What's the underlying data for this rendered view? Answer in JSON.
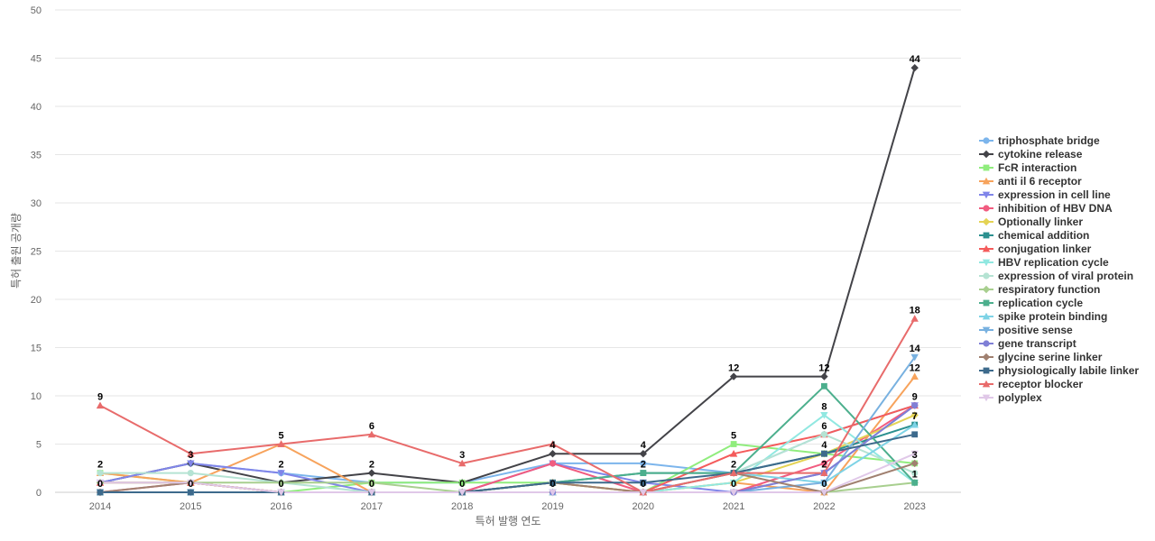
{
  "chart_data": {
    "type": "line",
    "title": "",
    "xlabel": "특허 발행 연도",
    "ylabel": "특허 출원 공개량",
    "ylim": [
      0,
      50
    ],
    "yticks": [
      0,
      5,
      10,
      15,
      20,
      25,
      30,
      35,
      40,
      45,
      50
    ],
    "grid": true,
    "legend_position": "right",
    "x": [
      "2014",
      "2015",
      "2016",
      "2017",
      "2018",
      "2019",
      "2020",
      "2021",
      "2022",
      "2023"
    ],
    "series": [
      {
        "name": "triphosphate bridge",
        "color": "#7cb5ec",
        "marker": "circle",
        "values": [
          1,
          3,
          2,
          1,
          1,
          3,
          3,
          2,
          6,
          9
        ]
      },
      {
        "name": "cytokine release",
        "color": "#434348",
        "marker": "diamond",
        "values": [
          1,
          3,
          1,
          2,
          1,
          4,
          4,
          12,
          12,
          44
        ]
      },
      {
        "name": "FcR interaction",
        "color": "#90ed7d",
        "marker": "square",
        "values": [
          2,
          1,
          0,
          1,
          1,
          1,
          0,
          5,
          4,
          3
        ]
      },
      {
        "name": "anti il 6 receptor",
        "color": "#f7a35c",
        "marker": "triangle",
        "values": [
          2,
          1,
          5,
          0,
          0,
          1,
          0,
          1,
          0,
          12
        ]
      },
      {
        "name": "expression in cell line",
        "color": "#8085e9",
        "marker": "triangle-down",
        "values": [
          1,
          3,
          2,
          0,
          0,
          3,
          1,
          0,
          2,
          9
        ]
      },
      {
        "name": "inhibition of HBV DNA",
        "color": "#f15c80",
        "marker": "circle",
        "values": [
          0,
          1,
          0,
          0,
          0,
          3,
          0,
          0,
          3,
          9
        ]
      },
      {
        "name": "Optionally linker",
        "color": "#e4d354",
        "marker": "diamond",
        "values": [
          1,
          1,
          0,
          0,
          0,
          1,
          0,
          1,
          4,
          8
        ]
      },
      {
        "name": "chemical addition",
        "color": "#2b908f",
        "marker": "square",
        "values": [
          0,
          0,
          0,
          0,
          0,
          1,
          2,
          2,
          4,
          7
        ]
      },
      {
        "name": "conjugation linker",
        "color": "#f45b5b",
        "marker": "triangle",
        "values": [
          1,
          1,
          0,
          0,
          0,
          0,
          0,
          4,
          6,
          9
        ]
      },
      {
        "name": "HBV replication cycle",
        "color": "#91e8e1",
        "marker": "triangle-down",
        "values": [
          0,
          0,
          0,
          0,
          0,
          0,
          0,
          1,
          8,
          1
        ]
      },
      {
        "name": "expression of viral protein",
        "color": "#b5e3d3",
        "marker": "circle",
        "values": [
          2,
          2,
          1,
          0,
          0,
          0,
          0,
          2,
          6,
          2
        ]
      },
      {
        "name": "respiratory function",
        "color": "#a8cf8f",
        "marker": "diamond",
        "values": [
          1,
          1,
          1,
          1,
          0,
          0,
          0,
          0,
          0,
          1
        ]
      },
      {
        "name": "replication cycle",
        "color": "#4caf8d",
        "marker": "square",
        "values": [
          0,
          0,
          0,
          0,
          0,
          1,
          2,
          2,
          11,
          1
        ]
      },
      {
        "name": "spike protein binding",
        "color": "#7ed3e6",
        "marker": "triangle",
        "values": [
          0,
          0,
          0,
          0,
          0,
          0,
          0,
          2,
          1,
          7
        ]
      },
      {
        "name": "positive sense",
        "color": "#78b1e0",
        "marker": "triangle-down",
        "values": [
          0,
          0,
          0,
          0,
          0,
          0,
          0,
          0,
          1,
          14
        ]
      },
      {
        "name": "gene transcript",
        "color": "#7f7fd6",
        "marker": "circle",
        "values": [
          0,
          0,
          0,
          0,
          0,
          0,
          0,
          0,
          2,
          9
        ]
      },
      {
        "name": "glycine serine linker",
        "color": "#a08070",
        "marker": "diamond",
        "values": [
          0,
          1,
          0,
          0,
          0,
          1,
          0,
          2,
          0,
          3
        ]
      },
      {
        "name": "physiologically labile linker",
        "color": "#3d6a8c",
        "marker": "square",
        "values": [
          0,
          0,
          0,
          0,
          0,
          1,
          1,
          2,
          4,
          6
        ]
      },
      {
        "name": "receptor blocker",
        "color": "#e86b6b",
        "marker": "triangle",
        "values": [
          9,
          4,
          5,
          6,
          3,
          5,
          0,
          2,
          2,
          18
        ]
      },
      {
        "name": "polyplex",
        "color": "#e0c8e8",
        "marker": "triangle-down",
        "values": [
          1,
          1,
          0,
          0,
          0,
          0,
          0,
          0,
          0,
          4
        ]
      }
    ],
    "data_labels": [
      {
        "x": "2014",
        "y": 9,
        "text": "9"
      },
      {
        "x": "2014",
        "y": 2,
        "text": "2"
      },
      {
        "x": "2014",
        "y": 0,
        "text": "0"
      },
      {
        "x": "2015",
        "y": 3,
        "text": "3"
      },
      {
        "x": "2015",
        "y": 0,
        "text": "0"
      },
      {
        "x": "2016",
        "y": 5,
        "text": "5"
      },
      {
        "x": "2016",
        "y": 2,
        "text": "2"
      },
      {
        "x": "2016",
        "y": 0,
        "text": "0"
      },
      {
        "x": "2017",
        "y": 6,
        "text": "6"
      },
      {
        "x": "2017",
        "y": 2,
        "text": "2"
      },
      {
        "x": "2017",
        "y": 0,
        "text": "0"
      },
      {
        "x": "2018",
        "y": 3,
        "text": "3"
      },
      {
        "x": "2018",
        "y": 0,
        "text": "0"
      },
      {
        "x": "2019",
        "y": 4,
        "text": "4"
      },
      {
        "x": "2019",
        "y": 0,
        "text": "0"
      },
      {
        "x": "2020",
        "y": 4,
        "text": "4"
      },
      {
        "x": "2020",
        "y": 2,
        "text": "2"
      },
      {
        "x": "2020",
        "y": 0,
        "text": "0"
      },
      {
        "x": "2021",
        "y": 12,
        "text": "12"
      },
      {
        "x": "2021",
        "y": 5,
        "text": "5"
      },
      {
        "x": "2021",
        "y": 2,
        "text": "2"
      },
      {
        "x": "2021",
        "y": 0,
        "text": "0"
      },
      {
        "x": "2022",
        "y": 12,
        "text": "12"
      },
      {
        "x": "2022",
        "y": 8,
        "text": "8"
      },
      {
        "x": "2022",
        "y": 6,
        "text": "6"
      },
      {
        "x": "2022",
        "y": 4,
        "text": "4"
      },
      {
        "x": "2022",
        "y": 2,
        "text": "2"
      },
      {
        "x": "2022",
        "y": 0,
        "text": "0"
      },
      {
        "x": "2023",
        "y": 44,
        "text": "44"
      },
      {
        "x": "2023",
        "y": 18,
        "text": "18"
      },
      {
        "x": "2023",
        "y": 14,
        "text": "14"
      },
      {
        "x": "2023",
        "y": 12,
        "text": "12"
      },
      {
        "x": "2023",
        "y": 9,
        "text": "9"
      },
      {
        "x": "2023",
        "y": 7,
        "text": "7"
      },
      {
        "x": "2023",
        "y": 3,
        "text": "3"
      },
      {
        "x": "2023",
        "y": 1,
        "text": "1"
      }
    ]
  }
}
